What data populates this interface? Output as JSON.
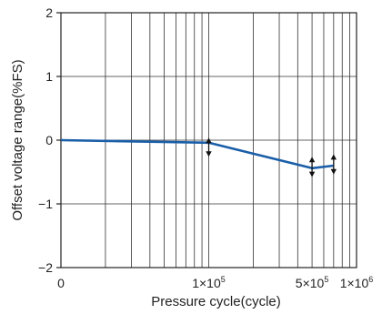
{
  "chart_data": {
    "type": "line",
    "xlabel": "Pressure cycle(cycle)",
    "ylabel": "Offset voltage range(%FS)",
    "xscale": "log",
    "xlim": [
      10000,
      1000000
    ],
    "ylim": [
      -2,
      2
    ],
    "grid": true,
    "line_color": "#1a5ea8",
    "x_ticks": [
      {
        "value": 10000,
        "label": "0"
      },
      {
        "value": 100000,
        "label": "1×10",
        "exp": "5"
      },
      {
        "value": 500000,
        "label": "5×10",
        "exp": "5"
      },
      {
        "value": 1000000,
        "label": "1×10",
        "exp": "6"
      }
    ],
    "y_ticks": [
      {
        "value": 2,
        "label": "2"
      },
      {
        "value": 1,
        "label": "1"
      },
      {
        "value": 0,
        "label": "0"
      },
      {
        "value": -1,
        "label": "−1"
      },
      {
        "value": -2,
        "label": "−2"
      }
    ],
    "series": [
      {
        "x": [
          10000,
          100000,
          500000,
          700000
        ],
        "y": [
          0.0,
          -0.04,
          -0.44,
          -0.4
        ]
      }
    ],
    "range_markers": [
      {
        "x": 100000,
        "y_min": -0.26,
        "y_max": 0.04
      },
      {
        "x": 500000,
        "y_min": -0.58,
        "y_max": -0.26
      },
      {
        "x": 700000,
        "y_min": -0.54,
        "y_max": -0.22
      }
    ]
  }
}
